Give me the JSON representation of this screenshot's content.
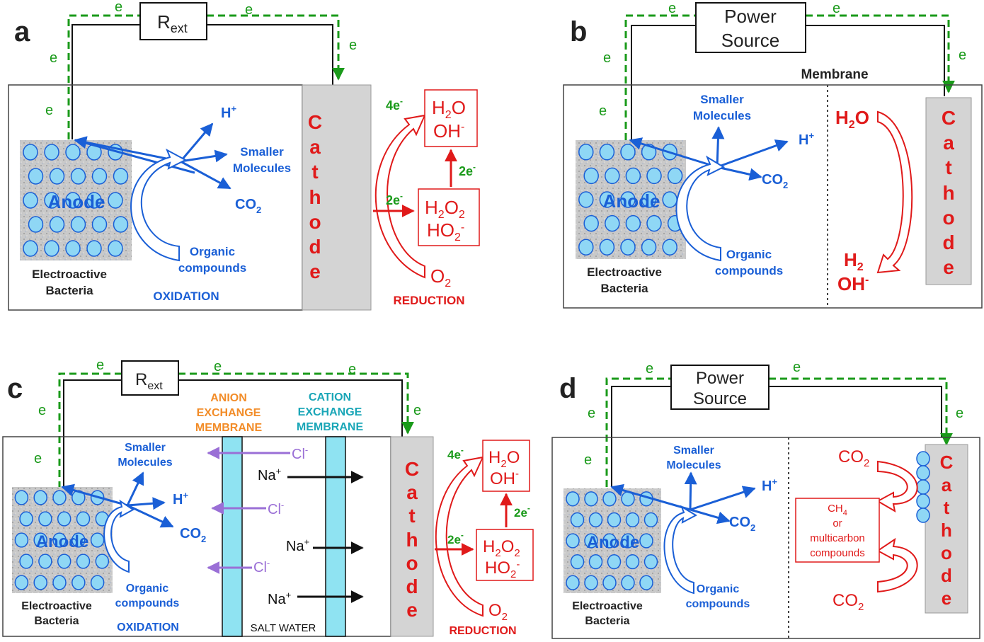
{
  "panel_a": {
    "letter": "a",
    "resistor": {
      "main": "R",
      "sub": "ext"
    },
    "electron": "e",
    "anode": "Anode",
    "bacteria_line1": "Electroactive",
    "bacteria_line2": "Bacteria",
    "oxidation": "OXIDATION",
    "h_plus": "H",
    "smaller_line1": "Smaller",
    "smaller_line2": "Molecules",
    "co2": "CO",
    "organic_line1": "Organic",
    "organic_line2": "compounds",
    "cathode_letters": [
      "C",
      "a",
      "t",
      "h",
      "o",
      "d",
      "e"
    ],
    "four_e": "4e",
    "two_e_top": "2e",
    "two_e_bottom": "2e",
    "h2o": "H",
    "oh": "OH",
    "h2o2": "H",
    "ho2": "HO",
    "o2": "O",
    "reduction": "REDUCTION"
  },
  "panel_b": {
    "letter": "b",
    "power_line1": "Power",
    "power_line2": "Source",
    "membrane": "Membrane",
    "anode": "Anode",
    "bacteria_line1": "Electroactive",
    "bacteria_line2": "Bacteria",
    "smaller_line1": "Smaller",
    "smaller_line2": "Molecules",
    "organic_line1": "Organic",
    "organic_line2": "compounds",
    "cathode_letters": [
      "C",
      "a",
      "t",
      "h",
      "o",
      "d",
      "e"
    ]
  },
  "panel_c": {
    "letter": "c",
    "resistor": {
      "main": "R",
      "sub": "ext"
    },
    "anion_line1": "ANION",
    "anion_line2": "EXCHANGE",
    "anion_line3": "MEMBRANE",
    "cation_line1": "CATION",
    "cation_line2": "EXCHANGE",
    "cation_line3": "MEMBRANE",
    "cl": "Cl",
    "na": "Na",
    "salt_water": "SALT WATER",
    "anode": "Anode",
    "bacteria_line1": "Electroactive",
    "bacteria_line2": "Bacteria",
    "oxidation": "OXIDATION",
    "reduction": "REDUCTION",
    "smaller_line1": "Smaller",
    "smaller_line2": "Molecules",
    "organic_line1": "Organic",
    "organic_line2": "compounds",
    "cathode_letters": [
      "C",
      "a",
      "t",
      "h",
      "o",
      "d",
      "e"
    ]
  },
  "panel_d": {
    "letter": "d",
    "power_line1": "Power",
    "power_line2": "Source",
    "anode": "Anode",
    "bacteria_line1": "Electroactive",
    "bacteria_line2": "Bacteria",
    "smaller_line1": "Smaller",
    "smaller_line2": "Molecules",
    "organic_line1": "Organic",
    "organic_line2": "compounds",
    "co2": "CO",
    "ch4": "CH",
    "or": "or",
    "multicarbon": "multicarbon",
    "compounds": "compounds",
    "cathode_letters": [
      "C",
      "a",
      "t",
      "h",
      "o",
      "d",
      "e"
    ]
  },
  "colors": {
    "blue": "#1a5fd6",
    "red": "#e01a1a",
    "green": "#1a9a1a",
    "orange": "#f28c28",
    "teal": "#1aa6b7",
    "purple": "#9a6fd6",
    "membrane_fill": "#8fe3f2"
  }
}
